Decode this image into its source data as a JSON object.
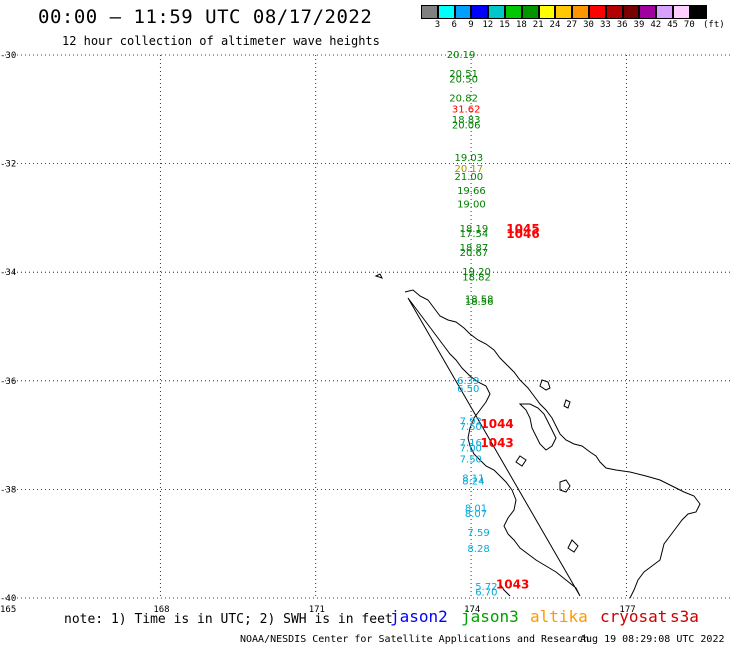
{
  "header": {
    "title": "00:00 – 11:59 UTC 08/17/2022",
    "subtitle": "12 hour collection of altimeter wave heights"
  },
  "legend": {
    "colors": [
      "#808080",
      "#00ffff",
      "#00a0ff",
      "#0000ff",
      "#00c8c8",
      "#00c800",
      "#009600",
      "#ffff00",
      "#ffc800",
      "#ff9600",
      "#ff0000",
      "#b40000",
      "#780000",
      "#a000a0",
      "#d8a0ff",
      "#ffd0ff",
      "#000000"
    ],
    "labels": [
      "3",
      "6",
      "9",
      "12",
      "15",
      "18",
      "21",
      "24",
      "27",
      "30",
      "33",
      "36",
      "39",
      "42",
      "45",
      "70"
    ],
    "unit": "(ft)"
  },
  "map": {
    "lat_labels": [
      "-30",
      "-32",
      "-34",
      "-36",
      "-38",
      "-40"
    ],
    "lon_labels": [
      "165",
      "168",
      "171",
      "174",
      "177"
    ],
    "lat_range": [
      -40,
      -30
    ],
    "lon_range": [
      165,
      179
    ],
    "grid": "dotted"
  },
  "observations": [
    {
      "lon": 173.8,
      "lat": -30.0,
      "v": "20.19",
      "c": "#008000"
    },
    {
      "lon": 173.85,
      "lat": -30.35,
      "v": "20.51",
      "c": "#008000"
    },
    {
      "lon": 173.85,
      "lat": -30.45,
      "v": "20.50",
      "c": "#008000"
    },
    {
      "lon": 173.85,
      "lat": -30.8,
      "v": "20.82",
      "c": "#008000"
    },
    {
      "lon": 173.9,
      "lat": -31.0,
      "v": "31.62",
      "c": "#ff0000"
    },
    {
      "lon": 173.9,
      "lat": -31.2,
      "v": "18.83",
      "c": "#008000"
    },
    {
      "lon": 173.9,
      "lat": -31.3,
      "v": "20.06",
      "c": "#008000"
    },
    {
      "lon": 173.95,
      "lat": -31.9,
      "v": "19.03",
      "c": "#008000"
    },
    {
      "lon": 173.95,
      "lat": -32.1,
      "v": "20.17",
      "c": "#999900"
    },
    {
      "lon": 173.95,
      "lat": -32.25,
      "v": "21.00",
      "c": "#008000"
    },
    {
      "lon": 174.0,
      "lat": -32.5,
      "v": "19.66",
      "c": "#008000"
    },
    {
      "lon": 174.0,
      "lat": -32.75,
      "v": "19.00",
      "c": "#008000"
    },
    {
      "lon": 174.05,
      "lat": -33.2,
      "v": "18.19",
      "c": "#008000"
    },
    {
      "lon": 174.05,
      "lat": -33.3,
      "v": "17.54",
      "c": "#008000"
    },
    {
      "lon": 174.05,
      "lat": -33.55,
      "v": "18.87",
      "c": "#008000"
    },
    {
      "lon": 174.05,
      "lat": -33.65,
      "v": "20.67",
      "c": "#008000"
    },
    {
      "lon": 174.1,
      "lat": -34.0,
      "v": "19.20",
      "c": "#008000"
    },
    {
      "lon": 174.1,
      "lat": -34.1,
      "v": "18.82",
      "c": "#008000"
    },
    {
      "lon": 174.15,
      "lat": -34.5,
      "v": "18.58",
      "c": "#008000"
    },
    {
      "lon": 174.15,
      "lat": -34.55,
      "v": "18.56",
      "c": "#008000"
    },
    {
      "lon": 174.0,
      "lat": -36.0,
      "v": "6.39",
      "c": "#00aadd"
    },
    {
      "lon": 174.0,
      "lat": -36.15,
      "v": "6.50",
      "c": "#00aadd"
    },
    {
      "lon": 174.05,
      "lat": -36.75,
      "v": "7.92",
      "c": "#00aadd"
    },
    {
      "lon": 174.05,
      "lat": -36.85,
      "v": "7.50",
      "c": "#00aadd"
    },
    {
      "lon": 174.05,
      "lat": -37.15,
      "v": "7.16",
      "c": "#00aadd"
    },
    {
      "lon": 174.05,
      "lat": -37.25,
      "v": "7.00",
      "c": "#00aadd"
    },
    {
      "lon": 174.05,
      "lat": -37.45,
      "v": "7.50",
      "c": "#00aadd"
    },
    {
      "lon": 174.1,
      "lat": -37.8,
      "v": "8.11",
      "c": "#00aadd"
    },
    {
      "lon": 174.1,
      "lat": -37.85,
      "v": "8.24",
      "c": "#00aadd"
    },
    {
      "lon": 174.15,
      "lat": -38.35,
      "v": "8.01",
      "c": "#00aadd"
    },
    {
      "lon": 174.15,
      "lat": -38.45,
      "v": "8.07",
      "c": "#00aadd"
    },
    {
      "lon": 174.2,
      "lat": -38.8,
      "v": "7.59",
      "c": "#00aadd"
    },
    {
      "lon": 174.2,
      "lat": -39.1,
      "v": "8.28",
      "c": "#00aadd"
    },
    {
      "lon": 174.35,
      "lat": -39.8,
      "v": "5.72",
      "c": "#00aadd"
    },
    {
      "lon": 174.35,
      "lat": -39.9,
      "v": "6.70",
      "c": "#00aadd"
    }
  ],
  "flags": [
    {
      "lon": 174.95,
      "lat": -33.2,
      "v": "1045",
      "c": "#ff0000"
    },
    {
      "lon": 174.95,
      "lat": -33.3,
      "v": "1046",
      "c": "#ff0000"
    },
    {
      "lon": 174.45,
      "lat": -36.8,
      "v": "1044",
      "c": "#ff0000"
    },
    {
      "lon": 174.45,
      "lat": -37.15,
      "v": "1043",
      "c": "#ff0000"
    },
    {
      "lon": 174.75,
      "lat": -39.75,
      "v": "1043",
      "c": "#ff0000"
    }
  ],
  "footer": {
    "note": "note: 1) Time is in UTC; 2) SWH is in feet",
    "missions": [
      "jason2",
      "jason3",
      "altika",
      "cryosat",
      "s3a"
    ],
    "credit": "NOAA/NESDIS Center for Satellite Applications and Research",
    "timestamp": "Aug 19 08:29:08 UTC 2022"
  }
}
